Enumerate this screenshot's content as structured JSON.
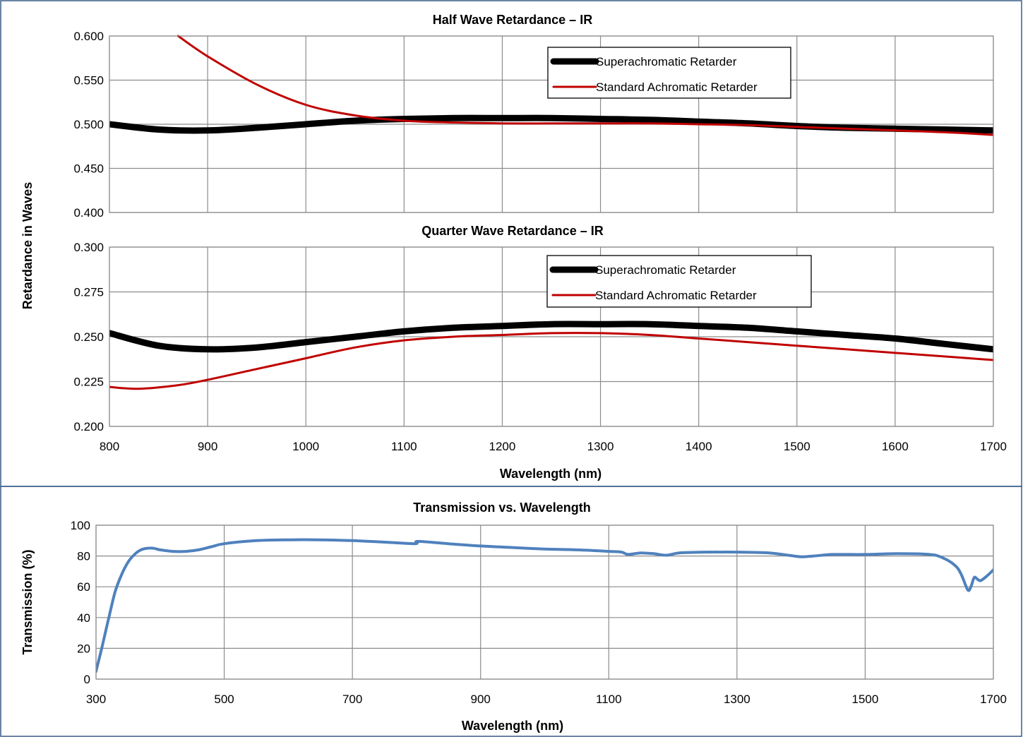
{
  "retardance_panel": {
    "ylabel": "Retardance in Waves"
  },
  "chart_data": [
    {
      "type": "line",
      "title": "Half Wave Retardance – IR",
      "xlabel": "",
      "ylabel": "Retardance in Waves",
      "xlim": [
        800,
        1700
      ],
      "ylim": [
        0.4,
        0.6
      ],
      "xticks": [
        800,
        900,
        1000,
        1100,
        1200,
        1300,
        1400,
        1500,
        1600,
        1700
      ],
      "yticks": [
        "0.400",
        "0.450",
        "0.500",
        "0.550",
        "0.600"
      ],
      "grid": true,
      "legend_position": "top-right",
      "series": [
        {
          "name": "Superachromatic Retarder",
          "color": "#000000",
          "x": [
            800,
            850,
            900,
            950,
            1000,
            1050,
            1100,
            1150,
            1200,
            1250,
            1300,
            1350,
            1400,
            1450,
            1500,
            1550,
            1600,
            1650,
            1700
          ],
          "y": [
            0.5,
            0.494,
            0.493,
            0.496,
            0.5,
            0.504,
            0.506,
            0.507,
            0.507,
            0.507,
            0.506,
            0.505,
            0.503,
            0.501,
            0.498,
            0.496,
            0.495,
            0.494,
            0.493
          ]
        },
        {
          "name": "Standard Achromatic Retarder",
          "color": "#c00000",
          "x": [
            870,
            900,
            950,
            1000,
            1050,
            1100,
            1150,
            1200,
            1250,
            1300,
            1350,
            1400,
            1450,
            1500,
            1550,
            1600,
            1650,
            1700
          ],
          "y": [
            0.6,
            0.577,
            0.545,
            0.522,
            0.51,
            0.504,
            0.502,
            0.501,
            0.501,
            0.501,
            0.501,
            0.5,
            0.499,
            0.497,
            0.495,
            0.493,
            0.491,
            0.488
          ]
        }
      ]
    },
    {
      "type": "line",
      "title": "Quarter Wave Retardance – IR",
      "xlabel": "Wavelength (nm)",
      "ylabel": "Retardance in Waves",
      "xlim": [
        800,
        1700
      ],
      "ylim": [
        0.2,
        0.3
      ],
      "xticks": [
        800,
        900,
        1000,
        1100,
        1200,
        1300,
        1400,
        1500,
        1600,
        1700
      ],
      "yticks": [
        "0.200",
        "0.225",
        "0.250",
        "0.275",
        "0.300"
      ],
      "grid": true,
      "legend_position": "top-right",
      "series": [
        {
          "name": "Superachromatic Retarder",
          "color": "#000000",
          "x": [
            800,
            850,
            900,
            950,
            1000,
            1050,
            1100,
            1150,
            1200,
            1250,
            1300,
            1350,
            1400,
            1450,
            1500,
            1550,
            1600,
            1650,
            1700
          ],
          "y": [
            0.252,
            0.245,
            0.243,
            0.244,
            0.247,
            0.25,
            0.253,
            0.255,
            0.256,
            0.257,
            0.257,
            0.257,
            0.256,
            0.255,
            0.253,
            0.251,
            0.249,
            0.246,
            0.243
          ]
        },
        {
          "name": "Standard Achromatic Retarder",
          "color": "#c00000",
          "x": [
            800,
            830,
            870,
            900,
            950,
            1000,
            1050,
            1100,
            1150,
            1200,
            1250,
            1300,
            1350,
            1400,
            1450,
            1500,
            1550,
            1600,
            1650,
            1700
          ],
          "y": [
            0.222,
            0.221,
            0.223,
            0.226,
            0.232,
            0.238,
            0.244,
            0.248,
            0.25,
            0.251,
            0.252,
            0.252,
            0.251,
            0.249,
            0.247,
            0.245,
            0.243,
            0.241,
            0.239,
            0.237
          ]
        }
      ]
    },
    {
      "type": "line",
      "title": "Transmission vs. Wavelength",
      "xlabel": "Wavelength (nm)",
      "ylabel": "Transmission (%)",
      "xlim": [
        300,
        1700
      ],
      "ylim": [
        0,
        100
      ],
      "xticks": [
        300,
        500,
        700,
        900,
        1100,
        1300,
        1500,
        1700
      ],
      "yticks": [
        "0",
        "20",
        "40",
        "60",
        "80",
        "100"
      ],
      "grid": true,
      "legend_position": "none",
      "series": [
        {
          "name": "",
          "color": "#4f81bd",
          "x": [
            300,
            310,
            320,
            330,
            340,
            350,
            360,
            370,
            380,
            390,
            400,
            420,
            440,
            460,
            480,
            500,
            550,
            600,
            650,
            700,
            750,
            798,
            802,
            850,
            900,
            950,
            1000,
            1050,
            1100,
            1120,
            1130,
            1150,
            1170,
            1190,
            1210,
            1250,
            1300,
            1350,
            1380,
            1400,
            1420,
            1450,
            1500,
            1550,
            1600,
            1620,
            1640,
            1650,
            1660,
            1665,
            1670,
            1675,
            1680,
            1690,
            1700
          ],
          "y": [
            5,
            22,
            40,
            57,
            68,
            76,
            81,
            84,
            85,
            85,
            84,
            83,
            83,
            84,
            86,
            88,
            90,
            90.5,
            90.5,
            90,
            89,
            88,
            89.5,
            88,
            86.5,
            85.5,
            84.5,
            84,
            83,
            82.5,
            81,
            82,
            81.5,
            80.5,
            82,
            82.5,
            82.5,
            82,
            80.5,
            79.5,
            80,
            81,
            81,
            81.5,
            81,
            79,
            74,
            68,
            58,
            60,
            66,
            65,
            64,
            67,
            71
          ]
        }
      ]
    }
  ]
}
